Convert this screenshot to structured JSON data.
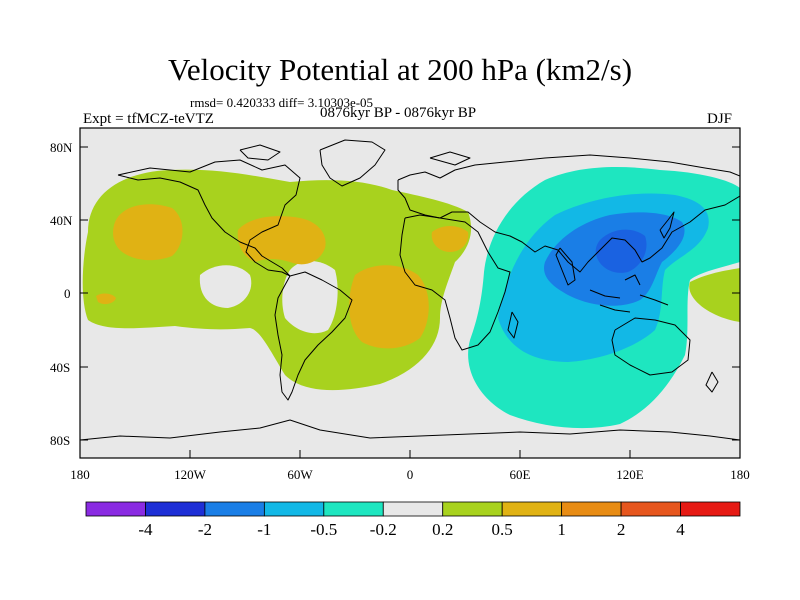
{
  "figure": {
    "title": "Velocity Potential at 200 hPa (km2/s)",
    "stats": "rmsd= 0.420333 diff= 3.10303e-05",
    "experiment": "Expt = tfMCZ-teVTZ",
    "period": "0876kyr BP - 0876kyr BP",
    "season": "DJF"
  },
  "map": {
    "projection": "cylindrical equidistant",
    "lon_range": [
      -180,
      180
    ],
    "lat_range": [
      -90,
      90
    ],
    "lon_ticks": [
      "180",
      "120W",
      "60W",
      "0",
      "60E",
      "120E",
      "180"
    ],
    "lat_ticks": [
      "80N",
      "40N",
      "0",
      "40S",
      "80S"
    ],
    "background_color": "#e8e8e8"
  },
  "colorbar": {
    "colors": [
      "#8a2be2",
      "#1e2fd6",
      "#1a7ee6",
      "#12b8e6",
      "#1ee6c0",
      "#e8e8e8",
      "#a8d21e",
      "#e0b214",
      "#e88c14",
      "#e6561e",
      "#e61a14"
    ],
    "labels": [
      "-4",
      "-2",
      "-1",
      "-0.5",
      "-0.2",
      "0.2",
      "0.5",
      "1",
      "2",
      "4"
    ]
  }
}
